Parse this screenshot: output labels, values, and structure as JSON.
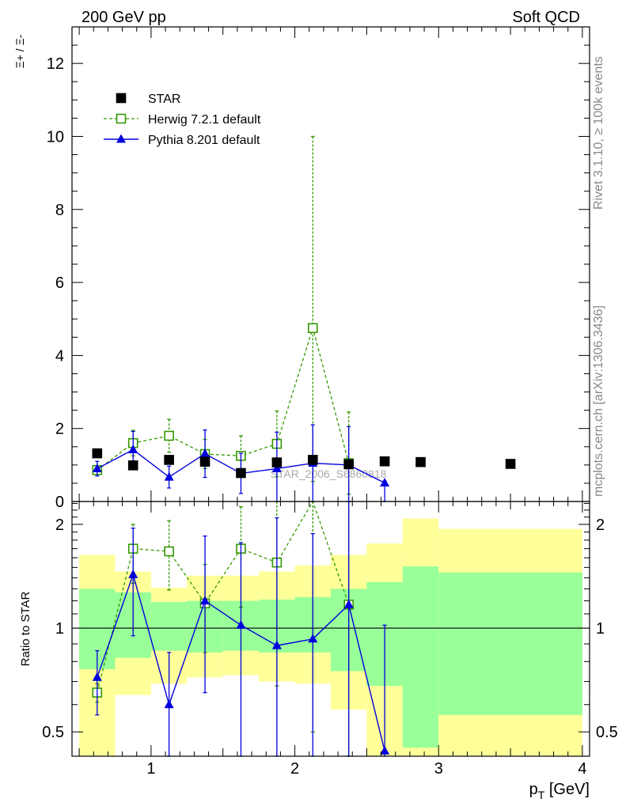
{
  "header": {
    "left": "200 GeV pp",
    "right": "Soft QCD"
  },
  "side_labels": {
    "rivet": "Rivet 3.1.10, ≥ 100k events",
    "mcplots": "mcplots.cern.ch [arXiv:1306.3436]"
  },
  "watermark": "STAR_2006_S6860818",
  "colors": {
    "data": "#000000",
    "herwig": "#339900",
    "pythia": "#0000dd",
    "band_inner": "#99ff99",
    "band_outer": "#ffff99"
  },
  "chart_data": [
    {
      "type": "scatter",
      "panel": "main",
      "ylabel": "Ξ+ / Ξ-",
      "xlabel": "",
      "xlim": [
        0.45,
        4.05
      ],
      "ylim": [
        0,
        13
      ],
      "yticks": [
        0,
        2,
        4,
        6,
        8,
        10,
        12
      ],
      "legend": {
        "placement": "top-left",
        "entries": [
          "STAR",
          "Herwig 7.2.1 default",
          "Pythia 8.201 default"
        ]
      },
      "series": [
        {
          "name": "STAR",
          "marker": "filled-square",
          "x": [
            0.625,
            0.875,
            1.125,
            1.375,
            1.625,
            1.875,
            2.125,
            2.375,
            2.625,
            2.875,
            3.5
          ],
          "y": [
            1.32,
            0.99,
            1.14,
            1.09,
            0.78,
            1.07,
            1.14,
            1.02,
            1.1,
            1.08,
            1.03
          ]
        },
        {
          "name": "Herwig 7.2.1 default",
          "marker": "open-square",
          "x": [
            0.625,
            0.875,
            1.125,
            1.375,
            1.625,
            1.875,
            2.125,
            2.375
          ],
          "y": [
            0.86,
            1.6,
            1.8,
            1.3,
            1.25,
            1.58,
            4.75,
            1.05
          ],
          "yerr_low": [
            0.05,
            0.35,
            0.45,
            0.4,
            0.5,
            0.9,
            4.2,
            0.85
          ],
          "yerr_high": [
            0.05,
            0.35,
            0.45,
            0.4,
            0.55,
            0.9,
            5.25,
            1.4
          ]
        },
        {
          "name": "Pythia 8.201 default",
          "marker": "filled-triangle",
          "x": [
            0.625,
            0.875,
            1.125,
            1.375,
            1.625,
            1.875,
            2.125,
            2.375,
            2.625
          ],
          "y": [
            0.9,
            1.42,
            0.67,
            1.31,
            0.77,
            0.9,
            1.05,
            1.0,
            0.51
          ],
          "yerr_low": [
            0.2,
            0.5,
            0.3,
            0.65,
            0.55,
            0.9,
            1.05,
            1.0,
            0.51
          ],
          "yerr_high": [
            0.2,
            0.5,
            0.3,
            0.65,
            0.55,
            1.0,
            1.05,
            1.05,
            0.05
          ]
        }
      ]
    },
    {
      "type": "line",
      "panel": "ratio",
      "ylabel": "Ratio to STAR",
      "xlabel": "p_T [GeV]",
      "xlim": [
        0.45,
        4.05
      ],
      "ylim": [
        0.425,
        2.33
      ],
      "yscale": "log",
      "xticks": [
        1,
        2,
        3,
        4
      ],
      "yticks": [
        0.5,
        1,
        2
      ],
      "reference_line": 1,
      "bands": {
        "edges": [
          0.5,
          0.75,
          1.0,
          1.25,
          1.5,
          1.75,
          2.0,
          2.25,
          2.5,
          2.75,
          3.0,
          4.0
        ],
        "inner_low": [
          0.76,
          0.82,
          0.86,
          0.85,
          0.86,
          0.85,
          0.85,
          0.75,
          0.68,
          0.45,
          0.56
        ],
        "inner_high": [
          1.3,
          1.27,
          1.19,
          1.2,
          1.2,
          1.21,
          1.23,
          1.3,
          1.36,
          1.51,
          1.45
        ],
        "outer_low": [
          0.38,
          0.64,
          0.69,
          0.72,
          0.73,
          0.7,
          0.69,
          0.58,
          0.38,
          0.38,
          0.38
        ],
        "outer_high": [
          1.63,
          1.46,
          1.31,
          1.42,
          1.42,
          1.46,
          1.52,
          1.63,
          1.76,
          2.08,
          1.94
        ]
      },
      "series": [
        {
          "name": "Herwig 7.2.1 default",
          "x": [
            0.625,
            0.875,
            1.125,
            1.375,
            1.625,
            1.875,
            2.125,
            2.375
          ],
          "y": [
            0.65,
            1.7,
            1.67,
            1.18,
            1.7,
            1.55,
            4.2,
            1.17
          ],
          "yerr_low": [
            0.04,
            0.35,
            0.38,
            0.33,
            0.55,
            0.87,
            3.7,
            0.9
          ],
          "yerr_high": [
            0.04,
            0.3,
            0.38,
            0.35,
            0.55,
            0.8,
            4.8,
            1.3
          ]
        },
        {
          "name": "Pythia 8.201 default",
          "x": [
            0.625,
            0.875,
            1.125,
            1.375,
            1.625,
            1.875,
            2.125,
            2.375,
            2.625
          ],
          "y": [
            0.72,
            1.43,
            0.6,
            1.2,
            1.02,
            0.89,
            0.93,
            1.17,
            0.44
          ],
          "yerr_low": [
            0.16,
            0.48,
            0.3,
            0.55,
            0.7,
            0.89,
            0.93,
            1.17,
            0.44
          ],
          "yerr_high": [
            0.14,
            0.52,
            0.25,
            0.65,
            0.75,
            1.2,
            0.95,
            1.2,
            0.58
          ]
        }
      ]
    }
  ]
}
